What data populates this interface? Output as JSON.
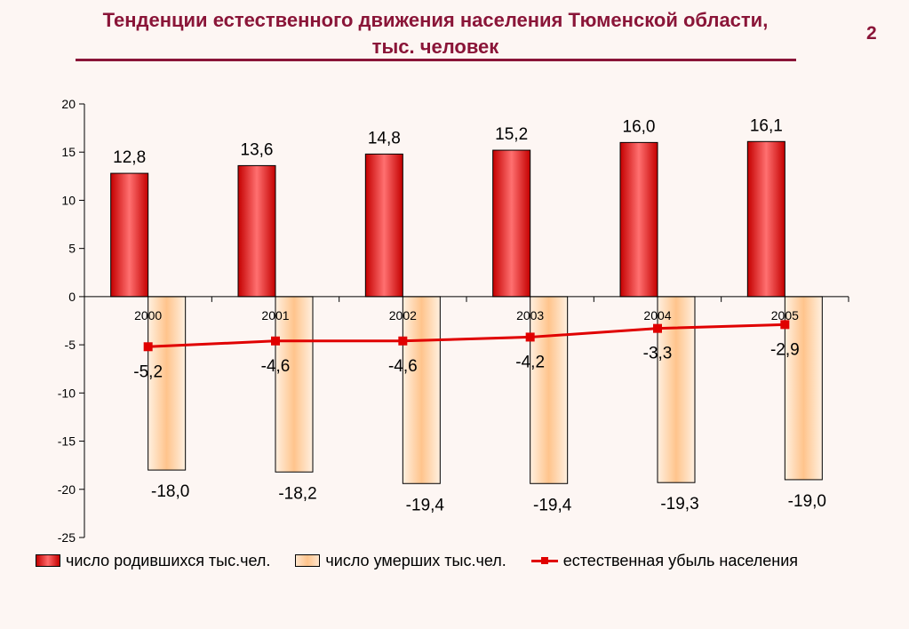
{
  "title_line1": "Тенденции естественного движения населения Тюменской области,",
  "title_line2": "тыс. человек",
  "slide_number": "2",
  "colors": {
    "title": "#8a1538",
    "born": "#e31a1a",
    "died": "#ffc48c",
    "line": "#e00000"
  },
  "chart_data": {
    "type": "bar",
    "categories": [
      "2000",
      "2001",
      "2002",
      "2003",
      "2004",
      "2005"
    ],
    "ylim": [
      -25,
      20
    ],
    "yticks": [
      20,
      15,
      10,
      5,
      0,
      -5,
      -10,
      -15,
      -20,
      -25
    ],
    "grid": false,
    "legend_position": "bottom",
    "series": [
      {
        "name": "число родившихся тыс.чел.",
        "kind": "bar",
        "values": [
          12.8,
          13.6,
          14.8,
          15.2,
          16.0,
          16.1
        ],
        "labels": [
          "12,8",
          "13,6",
          "14,8",
          "15,2",
          "16,0",
          "16,1"
        ]
      },
      {
        "name": "число умерших тыс.чел.",
        "kind": "bar",
        "values": [
          -18.0,
          -18.2,
          -19.4,
          -19.4,
          -19.3,
          -19.0
        ],
        "labels": [
          "-18,0",
          "-18,2",
          "-19,4",
          "-19,4",
          "-19,3",
          "-19,0"
        ]
      },
      {
        "name": "естественная убыль населения",
        "kind": "line",
        "values": [
          -5.2,
          -4.6,
          -4.6,
          -4.2,
          -3.3,
          -2.9
        ],
        "labels": [
          "-5,2",
          "-4,6",
          "-4,6",
          "-4,2",
          "-3,3",
          "-2,9"
        ]
      }
    ]
  }
}
